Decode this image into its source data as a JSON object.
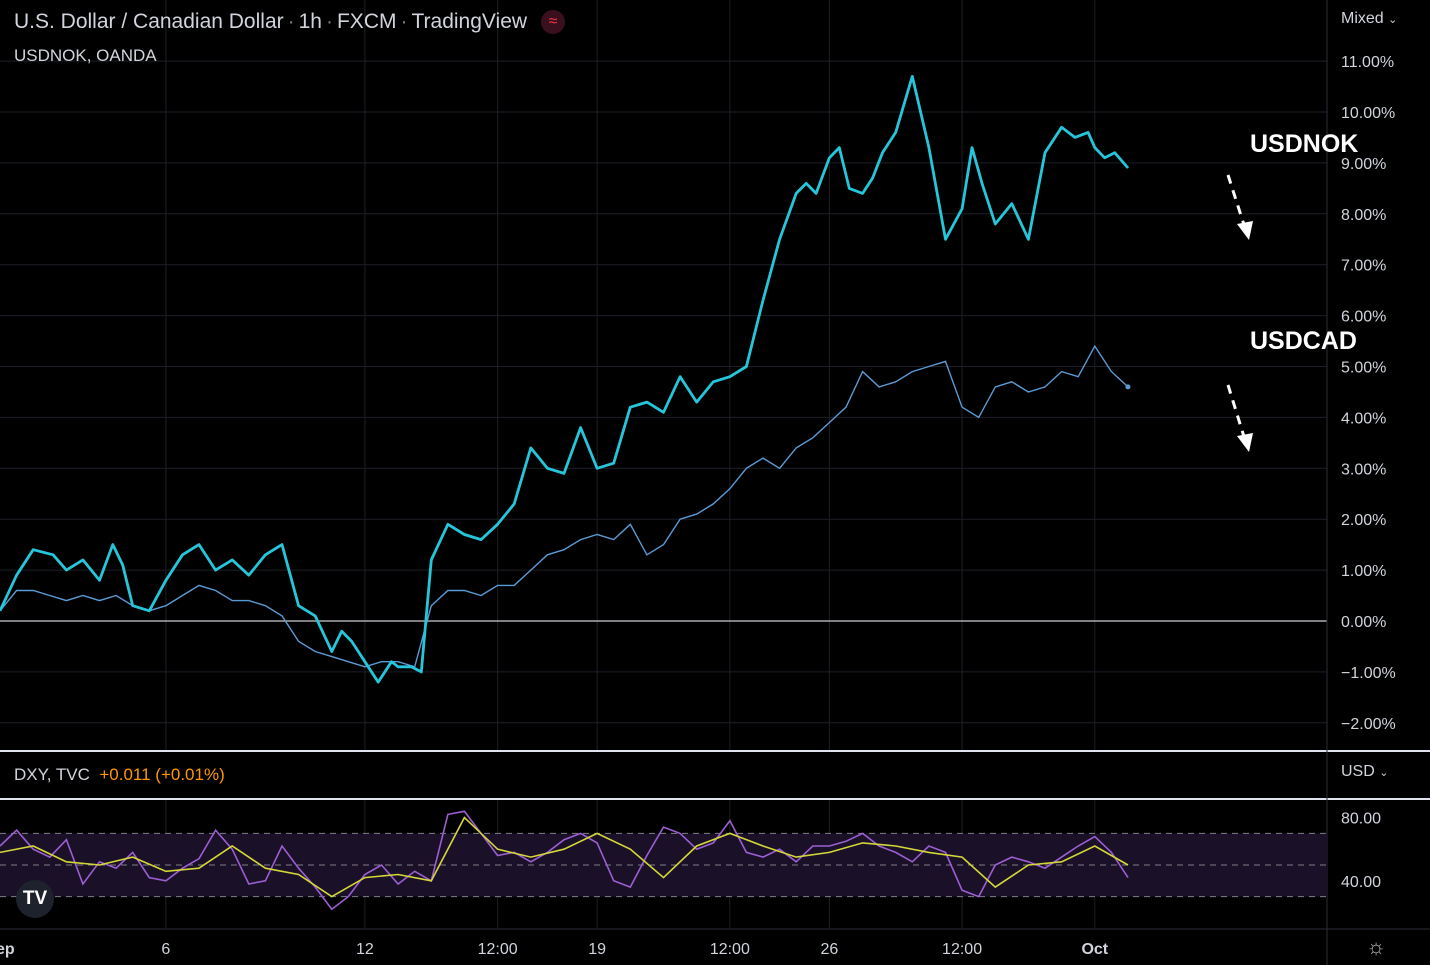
{
  "header": {
    "title_parts": [
      "U.S. Dollar / Canadian Dollar",
      "1h",
      "FXCM",
      "TradingView"
    ],
    "compare_symbol": "USDNOK, OANDA",
    "badge_icon": "approx-wave-icon"
  },
  "controls": {
    "scale_mode": "Mixed",
    "currency": "USD"
  },
  "indicator": {
    "symbol": "DXY, TVC",
    "change": "+0.011 (+0.01%)"
  },
  "annotations": {
    "usdnok": "USDNOK",
    "usdcad": "USDCAD"
  },
  "colors": {
    "usdnok": "#26c6da",
    "usdcad": "#5b9bd5",
    "rsi": "#9c5fd1",
    "rsi_ma": "#d4d73a",
    "change": "#ff9800"
  },
  "chart_data": [
    {
      "type": "line",
      "ylim": [
        -2.5,
        11.8
      ],
      "y_ticks": [
        "11.00%",
        "10.00%",
        "9.00%",
        "8.00%",
        "7.00%",
        "6.00%",
        "5.00%",
        "4.00%",
        "3.00%",
        "2.00%",
        "1.00%",
        "0.00%",
        "−1.00%",
        "−2.00%"
      ],
      "y_tick_values": [
        11,
        10,
        9,
        8,
        7,
        6,
        5,
        4,
        3,
        2,
        1,
        0,
        -1,
        -2
      ],
      "x_ticks": [
        "Sep",
        "6",
        "12",
        "12:00",
        "19",
        "12:00",
        "26",
        "12:00",
        "Oct"
      ],
      "x_tick_days": [
        1,
        6,
        12,
        16,
        19,
        23,
        26,
        30,
        34
      ],
      "x_range_days": [
        1,
        41
      ],
      "series": [
        {
          "name": "USDNOK",
          "x": [
            1,
            1.5,
            2,
            2.6,
            3,
            3.5,
            4,
            4.4,
            4.7,
            5,
            5.5,
            6,
            6.5,
            7,
            7.5,
            8,
            8.5,
            9,
            9.5,
            10,
            10.5,
            11,
            11.3,
            11.6,
            12,
            12.4,
            12.8,
            13,
            13.4,
            13.7,
            14,
            14.5,
            15,
            15.5,
            16,
            16.5,
            17,
            17.5,
            18,
            18.5,
            19,
            19.5,
            20,
            20.5,
            21,
            21.5,
            22,
            22.5,
            23,
            23.5,
            24,
            24.5,
            25,
            25.3,
            25.6,
            26,
            26.3,
            26.6,
            27,
            27.3,
            27.6,
            28,
            28.5,
            29,
            29.5,
            30,
            30.3,
            30.6,
            31,
            31.5,
            32,
            32.5,
            33,
            33.4,
            33.8,
            34,
            34.3,
            34.6,
            35
          ],
          "y": [
            0.2,
            0.9,
            1.4,
            1.3,
            1.0,
            1.2,
            0.8,
            1.5,
            1.1,
            0.3,
            0.2,
            0.8,
            1.3,
            1.5,
            1.0,
            1.2,
            0.9,
            1.3,
            1.5,
            0.3,
            0.1,
            -0.6,
            -0.2,
            -0.4,
            -0.8,
            -1.2,
            -0.8,
            -0.9,
            -0.9,
            -1.0,
            1.2,
            1.9,
            1.7,
            1.6,
            1.9,
            2.3,
            3.4,
            3.0,
            2.9,
            3.8,
            3.0,
            3.1,
            4.2,
            4.3,
            4.1,
            4.8,
            4.3,
            4.7,
            4.8,
            5.0,
            6.3,
            7.5,
            8.4,
            8.6,
            8.4,
            9.1,
            9.3,
            8.5,
            8.4,
            8.7,
            9.2,
            9.6,
            10.7,
            9.3,
            7.5,
            8.1,
            9.3,
            8.6,
            7.8,
            8.2,
            7.5,
            9.2,
            9.7,
            9.5,
            9.6,
            9.3,
            9.1,
            9.2,
            8.9
          ]
        },
        {
          "name": "USDCAD",
          "x": [
            1,
            1.5,
            2,
            2.5,
            3,
            3.5,
            4,
            4.5,
            5,
            5.5,
            6,
            6.5,
            7,
            7.5,
            8,
            8.5,
            9,
            9.5,
            10,
            10.5,
            11,
            11.5,
            12,
            12.5,
            13,
            13.5,
            14,
            14.5,
            15,
            15.5,
            16,
            16.5,
            17,
            17.5,
            18,
            18.5,
            19,
            19.5,
            20,
            20.5,
            21,
            21.5,
            22,
            22.5,
            23,
            23.5,
            24,
            24.5,
            25,
            25.5,
            26,
            26.5,
            27,
            27.5,
            28,
            28.5,
            29,
            29.5,
            30,
            30.5,
            31,
            31.5,
            32,
            32.5,
            33,
            33.5,
            34,
            34.5,
            35
          ],
          "y": [
            0.2,
            0.6,
            0.6,
            0.5,
            0.4,
            0.5,
            0.4,
            0.5,
            0.3,
            0.2,
            0.3,
            0.5,
            0.7,
            0.6,
            0.4,
            0.4,
            0.3,
            0.1,
            -0.4,
            -0.6,
            -0.7,
            -0.8,
            -0.9,
            -0.8,
            -0.8,
            -0.9,
            0.3,
            0.6,
            0.6,
            0.5,
            0.7,
            0.7,
            1.0,
            1.3,
            1.4,
            1.6,
            1.7,
            1.6,
            1.9,
            1.3,
            1.5,
            2.0,
            2.1,
            2.3,
            2.6,
            3.0,
            3.2,
            3.0,
            3.4,
            3.6,
            3.9,
            4.2,
            4.9,
            4.6,
            4.7,
            4.9,
            5.0,
            5.1,
            4.2,
            4.0,
            4.6,
            4.7,
            4.5,
            4.6,
            4.9,
            4.8,
            5.4,
            4.9,
            4.6
          ]
        }
      ]
    },
    {
      "type": "line",
      "ylim": [
        15,
        90
      ],
      "y_ticks": [
        "80.00",
        "40.00"
      ],
      "y_tick_values": [
        80,
        40
      ],
      "bands": [
        70,
        50,
        30
      ],
      "series": [
        {
          "name": "RSI",
          "x": [
            1,
            1.5,
            2,
            2.5,
            3,
            3.5,
            4,
            4.5,
            5,
            5.5,
            6,
            6.5,
            7,
            7.5,
            8,
            8.5,
            9,
            9.5,
            10,
            10.5,
            11,
            11.5,
            12,
            12.5,
            13,
            13.5,
            14,
            14.5,
            15,
            15.5,
            16,
            16.5,
            17,
            17.5,
            18,
            18.5,
            19,
            19.5,
            20,
            20.5,
            21,
            21.5,
            22,
            22.5,
            23,
            23.5,
            24,
            24.5,
            25,
            25.5,
            26,
            26.5,
            27,
            27.5,
            28,
            28.5,
            29,
            29.5,
            30,
            30.5,
            31,
            31.5,
            32,
            32.5,
            33,
            33.5,
            34,
            34.5,
            35
          ],
          "y": [
            62,
            72,
            60,
            55,
            66,
            38,
            52,
            48,
            58,
            42,
            40,
            48,
            54,
            72,
            60,
            38,
            40,
            62,
            48,
            36,
            22,
            30,
            44,
            50,
            38,
            46,
            40,
            82,
            84,
            70,
            56,
            58,
            52,
            58,
            66,
            70,
            64,
            40,
            36,
            56,
            74,
            70,
            60,
            64,
            78,
            58,
            55,
            60,
            52,
            62,
            62,
            65,
            70,
            62,
            58,
            52,
            62,
            58,
            34,
            30,
            50,
            55,
            52,
            48,
            55,
            62,
            68,
            58,
            42
          ]
        },
        {
          "name": "RSI-MA",
          "x": [
            1,
            2,
            3,
            4,
            5,
            6,
            7,
            8,
            9,
            10,
            11,
            12,
            13,
            14,
            15,
            16,
            17,
            18,
            19,
            20,
            21,
            22,
            23,
            24,
            25,
            26,
            27,
            28,
            29,
            30,
            31,
            32,
            33,
            34,
            35
          ],
          "y": [
            58,
            62,
            52,
            50,
            55,
            46,
            48,
            62,
            48,
            44,
            30,
            42,
            44,
            40,
            80,
            60,
            55,
            60,
            70,
            60,
            42,
            62,
            70,
            62,
            55,
            58,
            64,
            62,
            58,
            55,
            36,
            50,
            52,
            62,
            50
          ]
        }
      ]
    }
  ]
}
